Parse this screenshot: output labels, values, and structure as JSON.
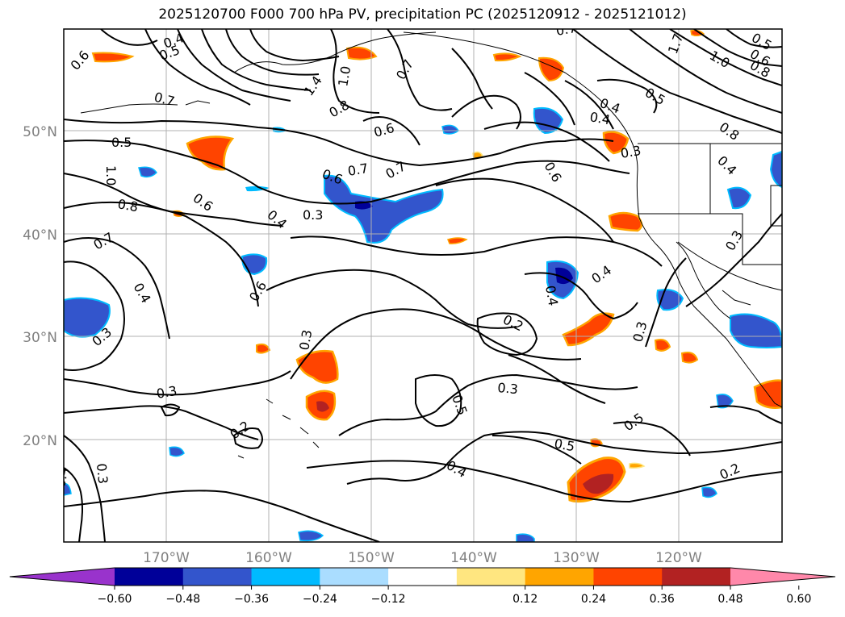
{
  "title": "2025120700 F000 700 hPa PV, precipitation PC (2025120912 - 2025121012)",
  "lat_labels": [
    "50°N",
    "40°N",
    "30°N",
    "20°N"
  ],
  "lon_labels": [
    "170°W",
    "160°W",
    "150°W",
    "140°W",
    "130°W",
    "120°W"
  ],
  "contour_labels": [
    {
      "id": "c1",
      "text": "0.4"
    },
    {
      "id": "c2",
      "text": "0.5"
    },
    {
      "id": "c3",
      "text": "0.6"
    },
    {
      "id": "c4",
      "text": "0.7"
    },
    {
      "id": "c5",
      "text": "1.4"
    },
    {
      "id": "c6",
      "text": "1.0"
    },
    {
      "id": "c7",
      "text": "0.7"
    },
    {
      "id": "c8",
      "text": "0.8"
    },
    {
      "id": "c9",
      "text": "0.6"
    },
    {
      "id": "c10",
      "text": "0.5"
    },
    {
      "id": "c11",
      "text": "1.0"
    },
    {
      "id": "c12",
      "text": "0.8"
    },
    {
      "id": "c13",
      "text": "0.6"
    },
    {
      "id": "c14",
      "text": "0.6"
    },
    {
      "id": "c15",
      "text": "0.7"
    },
    {
      "id": "c16",
      "text": "0.7"
    },
    {
      "id": "c17",
      "text": "0.4"
    },
    {
      "id": "c18",
      "text": "0.3"
    },
    {
      "id": "c19",
      "text": "0.7"
    },
    {
      "id": "c20",
      "text": "0.4"
    },
    {
      "id": "c21",
      "text": "0.6"
    },
    {
      "id": "c22",
      "text": "0.3"
    },
    {
      "id": "c23",
      "text": "0.3"
    },
    {
      "id": "c24",
      "text": "0.3"
    },
    {
      "id": "c25",
      "text": "0.2"
    },
    {
      "id": "c26",
      "text": "0.4"
    },
    {
      "id": "c27",
      "text": "0.3"
    },
    {
      "id": "c28",
      "text": "0.6"
    },
    {
      "id": "c29",
      "text": "0.4"
    },
    {
      "id": "c30",
      "text": "0.4"
    },
    {
      "id": "c31",
      "text": "0.2"
    },
    {
      "id": "c32",
      "text": "0.3"
    },
    {
      "id": "c33",
      "text": "0.5"
    },
    {
      "id": "c34",
      "text": "0.5"
    },
    {
      "id": "c35",
      "text": "0.5"
    },
    {
      "id": "c36",
      "text": "0.4"
    },
    {
      "id": "c37",
      "text": "0.2"
    },
    {
      "id": "c38",
      "text": "0.3"
    },
    {
      "id": "c39",
      "text": "0.4"
    },
    {
      "id": "c40",
      "text": "0.5"
    },
    {
      "id": "c41",
      "text": "0.7"
    },
    {
      "id": "c42",
      "text": "1.7"
    },
    {
      "id": "c43",
      "text": "1.0"
    },
    {
      "id": "c44",
      "text": "0.6"
    },
    {
      "id": "c45",
      "text": "0.8"
    },
    {
      "id": "c46",
      "text": "0.5"
    },
    {
      "id": "c47",
      "text": "0.8"
    },
    {
      "id": "c48",
      "text": "0.4"
    },
    {
      "id": "c49",
      "text": "0.3"
    },
    {
      "id": "c50",
      "text": "0.3"
    },
    {
      "id": "c51",
      "text": "0.4"
    }
  ],
  "colorbar": {
    "ticks": [
      "−0.60",
      "−0.48",
      "−0.36",
      "−0.24",
      "−0.12",
      "0.12",
      "0.24",
      "0.36",
      "0.48",
      "0.60"
    ],
    "colors": [
      "#9933cc",
      "#000099",
      "#3355cc",
      "#00bbff",
      "#aaddff",
      "#ffffff",
      "#ffe680",
      "#ffa500",
      "#ff4400",
      "#b22222",
      "#ff88aa"
    ]
  },
  "colors": {
    "blue_light": "#aaddff",
    "blue_mid": "#00bbff",
    "blue": "#3355cc",
    "blue_dark": "#000099",
    "yellow": "#ffe680",
    "orange": "#ffa500",
    "red": "#ff4400",
    "dark_red": "#b22222"
  }
}
